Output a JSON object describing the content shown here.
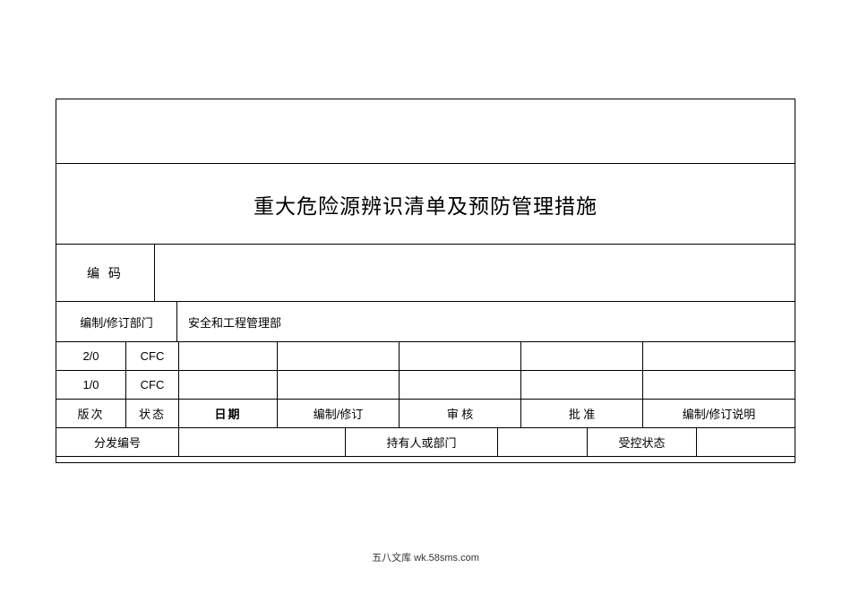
{
  "title": "重大危险源辨识清单及预防管理措施",
  "code_label": "编 码",
  "code_value": "",
  "dept_label": "编制/修订部门",
  "dept_value": "安全和工程管理部",
  "headers": {
    "version": "版次",
    "status": "状态",
    "date": "日期",
    "edit": "编制/修订",
    "review": "审 核",
    "approve": "批 准",
    "note": "编制/修订说明"
  },
  "rows": [
    {
      "version": "2/0",
      "status": "CFC",
      "date": "",
      "edit": "",
      "review": "",
      "approve": "",
      "note": ""
    },
    {
      "version": "1/0",
      "status": "CFC",
      "date": "",
      "edit": "",
      "review": "",
      "approve": "",
      "note": ""
    }
  ],
  "dist": {
    "label": "分发编号",
    "holder_label": "持有人或部门",
    "ctrl_label": "受控状态"
  },
  "footer": "五八文库 wk.58sms.com",
  "colors": {
    "border": "#000000",
    "background": "#ffffff",
    "text": "#000000",
    "footer_text": "#333333"
  },
  "fonts": {
    "title_size": 23,
    "body_size": 13,
    "footer_size": 11
  }
}
